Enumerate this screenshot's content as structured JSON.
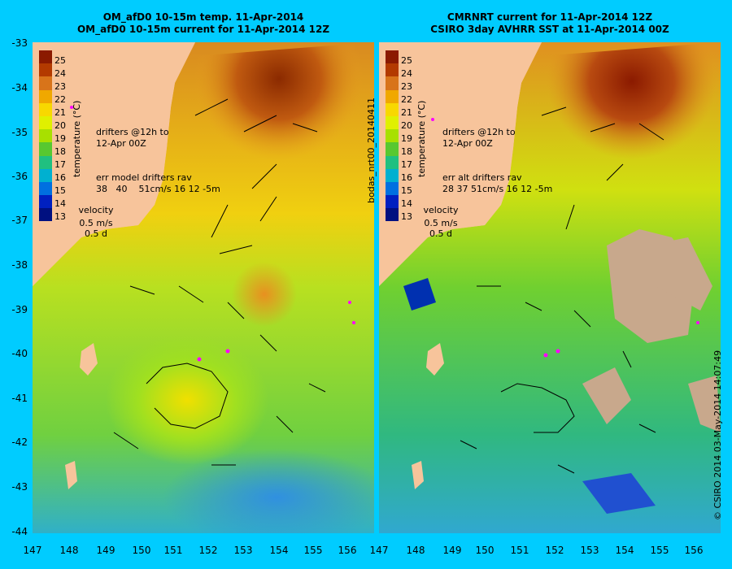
{
  "left_panel": {
    "title_line1": "OM_afD0 10-15m temp. 11-Apr-2014",
    "title_line2": "OM_afD0 10-15m current for 11-Apr-2014 12Z",
    "drifters_line1": "drifters @12h to",
    "drifters_line2": "12-Apr 00Z",
    "drifters_line3": "err model drifters rav",
    "drifters_line4": "38   40    51cm/s 16 12 -5m",
    "velocity_label": "velocity",
    "velocity_speed": "0.5 m/s",
    "velocity_time": "0.5 d"
  },
  "right_panel": {
    "title_line1": "CMRNRT current for 11-Apr-2014 12Z",
    "title_line2": "CSIRO 3day AVHRR SST at 11-Apr-2014 00Z",
    "drifters_line1": "drifters @12h to",
    "drifters_line2": "12-Apr 00Z",
    "drifters_line3": "err alt drifters rav",
    "drifters_line4": "28 37 51cm/s 16 12 -5m",
    "velocity_label": "velocity",
    "velocity_speed": "0.5 m/s",
    "velocity_time": "0.5 d"
  },
  "colorbar": {
    "label": "temperature (°C)",
    "ticks": [
      "25",
      "24",
      "23",
      "22",
      "21",
      "20",
      "19",
      "18",
      "17",
      "16",
      "15",
      "14",
      "13"
    ],
    "colors": [
      "#8b1a00",
      "#b33a00",
      "#d8741a",
      "#f0a800",
      "#f8d800",
      "#e0f000",
      "#a8e000",
      "#58c830",
      "#20c080",
      "#00b0d0",
      "#0070e0",
      "#0020c0",
      "#001080"
    ]
  },
  "side_label": "bodas_nrt00_20140411",
  "credit": "© CSIRO 2014   03-May-2014 14:07:49",
  "y_axis_ticks": [
    "-33",
    "-34",
    "-35",
    "-36",
    "-37",
    "-38",
    "-39",
    "-40",
    "-41",
    "-42",
    "-43",
    "-44"
  ],
  "x_axis_ticks_left": [
    "147",
    "148",
    "149",
    "150",
    "151",
    "152",
    "153",
    "154",
    "155",
    "156"
  ],
  "x_axis_ticks_right": [
    "147",
    "148",
    "149",
    "150",
    "151",
    "152",
    "153",
    "154",
    "155",
    "156"
  ],
  "colors": {
    "background": "#00ccff",
    "land": "#f7c49b",
    "cloud": "#c8a88c",
    "drifter": "#ff00ff"
  }
}
